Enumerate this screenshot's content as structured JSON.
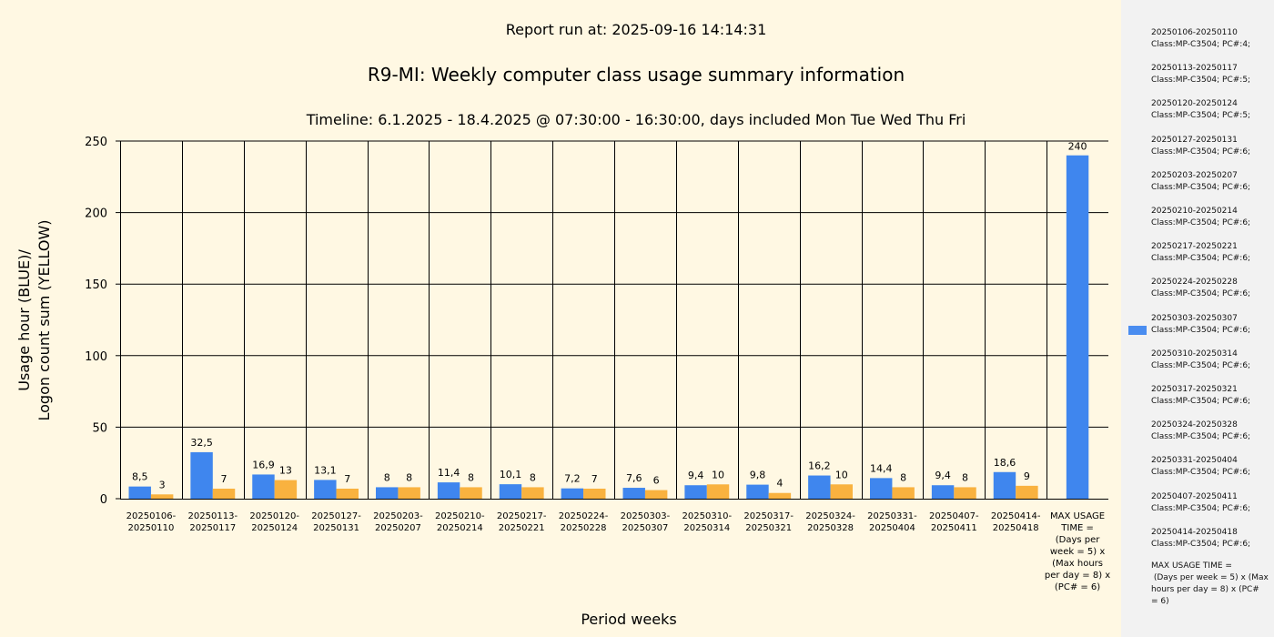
{
  "report_run": "Report run at: 2025-09-16 14:14:31",
  "title": "R9-MI: Weekly computer class usage summary information",
  "subtitle": "Timeline:  6.1.2025  - 18.4.2025  @  07:30:00 -  16:30:00, days included Mon Tue Wed Thu Fri",
  "colors": {
    "usage": "#3f86ee",
    "logon": "#f9b23f",
    "background": "#fff8e3",
    "legend_bg": "#f2f2f2"
  },
  "legend": {
    "items": [
      {
        "line1": "20250106-20250110",
        "line2": "Class:MP-C3504; PC#:4;"
      },
      {
        "line1": "20250113-20250117",
        "line2": "Class:MP-C3504; PC#:5;"
      },
      {
        "line1": "20250120-20250124",
        "line2": "Class:MP-C3504; PC#:5;"
      },
      {
        "line1": "20250127-20250131",
        "line2": "Class:MP-C3504; PC#:6;"
      },
      {
        "line1": "20250203-20250207",
        "line2": "Class:MP-C3504; PC#:6;"
      },
      {
        "line1": "20250210-20250214",
        "line2": "Class:MP-C3504; PC#:6;"
      },
      {
        "line1": "20250217-20250221",
        "line2": "Class:MP-C3504; PC#:6;"
      },
      {
        "line1": "20250224-20250228",
        "line2": "Class:MP-C3504; PC#:6;"
      },
      {
        "line1": "20250303-20250307",
        "line2": "Class:MP-C3504; PC#:6;"
      },
      {
        "line1": "20250310-20250314",
        "line2": "Class:MP-C3504; PC#:6;"
      },
      {
        "line1": "20250317-20250321",
        "line2": "Class:MP-C3504; PC#:6;"
      },
      {
        "line1": "20250324-20250328",
        "line2": "Class:MP-C3504; PC#:6;"
      },
      {
        "line1": "20250331-20250404",
        "line2": "Class:MP-C3504; PC#:6;"
      },
      {
        "line1": "20250407-20250411",
        "line2": "Class:MP-C3504; PC#:6;"
      },
      {
        "line1": "20250414-20250418",
        "line2": "Class:MP-C3504; PC#:6;"
      }
    ],
    "note": [
      "MAX USAGE TIME =",
      " (Days per week = 5) x (Max",
      "hours per day = 8) x (PC#",
      "= 6)"
    ]
  },
  "chart_data": {
    "type": "bar",
    "title": "R9-MI: Weekly computer class usage summary information",
    "subtitle": "Timeline:  6.1.2025  - 18.4.2025  @  07:30:00 -  16:30:00, days included Mon Tue Wed Thu Fri",
    "xlabel": "Period weeks",
    "ylabel": [
      "Usage hour (BLUE)/",
      "Logon count sum (YELLOW)"
    ],
    "ylim": [
      0,
      250
    ],
    "yticks": [
      0,
      50,
      100,
      150,
      200,
      250
    ],
    "grid": true,
    "legend_position": "right",
    "categories": [
      [
        "20250106-",
        "20250110"
      ],
      [
        "20250113-",
        "20250117"
      ],
      [
        "20250120-",
        "20250124"
      ],
      [
        "20250127-",
        "20250131"
      ],
      [
        "20250203-",
        "20250207"
      ],
      [
        "20250210-",
        "20250214"
      ],
      [
        "20250217-",
        "20250221"
      ],
      [
        "20250224-",
        "20250228"
      ],
      [
        "20250303-",
        "20250307"
      ],
      [
        "20250310-",
        "20250314"
      ],
      [
        "20250317-",
        "20250321"
      ],
      [
        "20250324-",
        "20250328"
      ],
      [
        "20250331-",
        "20250404"
      ],
      [
        "20250407-",
        "20250411"
      ],
      [
        "20250414-",
        "20250418"
      ],
      [
        "MAX USAGE",
        "TIME =",
        "(Days per",
        "week = 5) x",
        "(Max hours",
        "per day = 8) x",
        "(PC# = 6)"
      ]
    ],
    "series": [
      {
        "values": [
          8.5,
          32.5,
          16.9,
          13.1,
          8,
          11.4,
          10.1,
          7.2,
          7.6,
          9.4,
          9.8,
          16.2,
          14.4,
          9.4,
          18.6,
          240
        ],
        "labels": [
          "8,5",
          "32,5",
          "16,9",
          "13,1",
          "8",
          "11,4",
          "10,1",
          "7,2",
          "7,6",
          "9,4",
          "9,8",
          "16,2",
          "14,4",
          "9,4",
          "18,6",
          "240"
        ]
      },
      {
        "values": [
          3,
          7,
          13,
          7,
          8,
          8,
          8,
          7,
          6,
          10,
          4,
          10,
          8,
          8,
          9,
          null
        ],
        "labels": [
          "3",
          "7",
          "13",
          "7",
          "8",
          "8",
          "8",
          "7",
          "6",
          "10",
          "4",
          "10",
          "8",
          "8",
          "9",
          ""
        ]
      }
    ]
  }
}
